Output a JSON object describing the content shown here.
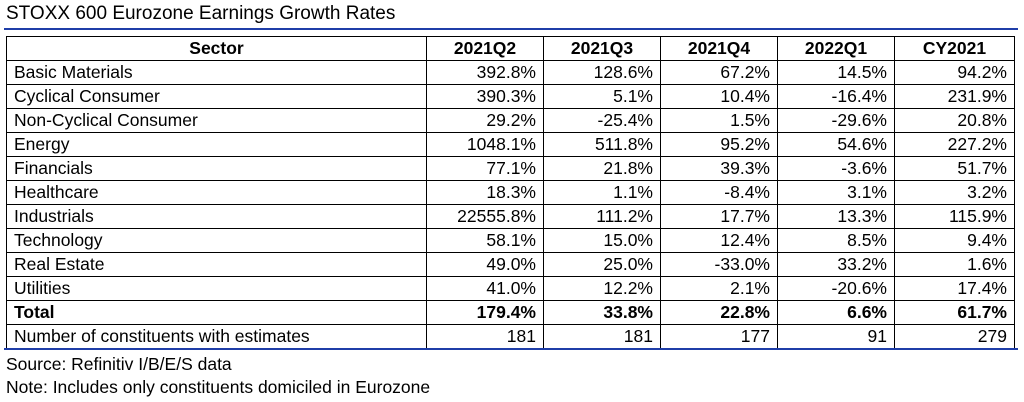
{
  "title": "STOXX 600 Eurozone Earnings Growth Rates",
  "table": {
    "headers": [
      "Sector",
      "2021Q2",
      "2021Q3",
      "2021Q4",
      "2022Q1",
      "CY2021"
    ],
    "rows": [
      [
        "Basic Materials",
        "392.8%",
        "128.6%",
        "67.2%",
        "14.5%",
        "94.2%"
      ],
      [
        "Cyclical Consumer",
        "390.3%",
        "5.1%",
        "10.4%",
        "-16.4%",
        "231.9%"
      ],
      [
        "Non-Cyclical Consumer",
        "29.2%",
        "-25.4%",
        "1.5%",
        "-29.6%",
        "20.8%"
      ],
      [
        "Energy",
        "1048.1%",
        "511.8%",
        "95.2%",
        "54.6%",
        "227.2%"
      ],
      [
        "Financials",
        "77.1%",
        "21.8%",
        "39.3%",
        "-3.6%",
        "51.7%"
      ],
      [
        "Healthcare",
        "18.3%",
        "1.1%",
        "-8.4%",
        "3.1%",
        "3.2%"
      ],
      [
        "Industrials",
        "22555.8%",
        "111.2%",
        "17.7%",
        "13.3%",
        "115.9%"
      ],
      [
        "Technology",
        "58.1%",
        "15.0%",
        "12.4%",
        "8.5%",
        "9.4%"
      ],
      [
        "Real Estate",
        "49.0%",
        "25.0%",
        "-33.0%",
        "33.2%",
        "1.6%"
      ],
      [
        "Utilities",
        "41.0%",
        "12.2%",
        "2.1%",
        "-20.6%",
        "17.4%"
      ]
    ],
    "total": [
      "Total",
      "179.4%",
      "33.8%",
      "22.8%",
      "6.6%",
      "61.7%"
    ],
    "constituents": [
      "Number of constituents with estimates",
      "181",
      "181",
      "177",
      "91",
      "279"
    ]
  },
  "source": "Source: Refinitiv I/B/E/S data",
  "note": "Note: Includes only constituents domiciled in Eurozone",
  "colors": {
    "rule": "#1f3ea8"
  }
}
